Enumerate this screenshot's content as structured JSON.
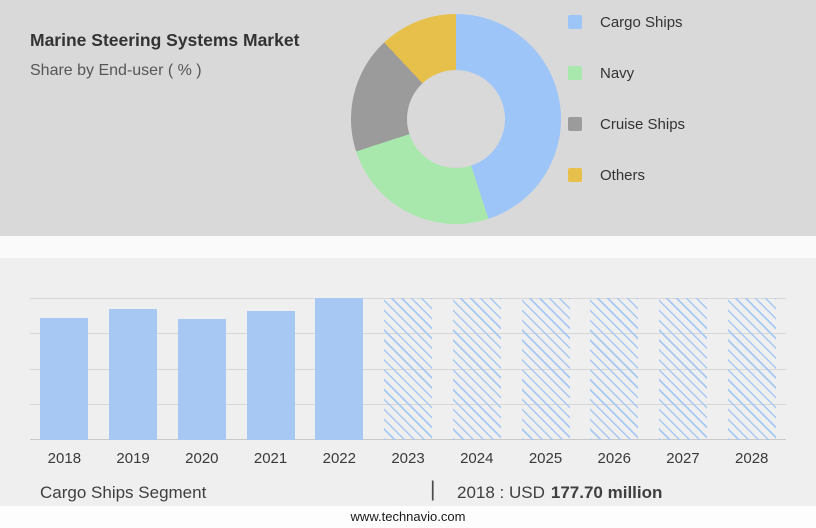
{
  "header": {
    "title": "Marine Steering Systems Market",
    "subtitle": "Share by End-user ( % )"
  },
  "legend": [
    {
      "label": "Cargo Ships",
      "color": "#9ec5f8"
    },
    {
      "label": "Navy",
      "color": "#a9e8ad"
    },
    {
      "label": "Cruise Ships",
      "color": "#9b9b9b"
    },
    {
      "label": "Others",
      "color": "#e7c04c"
    }
  ],
  "chart_data": [
    {
      "type": "pie",
      "title": "Share by End-user ( % )",
      "labels": [
        "Cargo Ships",
        "Navy",
        "Cruise Ships",
        "Others"
      ],
      "values": [
        45,
        25,
        18,
        12
      ],
      "colors": [
        "#9ec5f8",
        "#a9e8ad",
        "#9b9b9b",
        "#e7c04c"
      ],
      "donut": true,
      "legend_position": "right"
    },
    {
      "type": "bar",
      "categories": [
        "2018",
        "2019",
        "2020",
        "2021",
        "2022",
        "2023",
        "2024",
        "2025",
        "2026",
        "2027",
        "2028"
      ],
      "values": [
        86,
        92,
        85,
        91,
        100,
        100,
        100,
        100,
        100,
        100,
        100
      ],
      "forecast_categories": [
        "2023",
        "2024",
        "2025",
        "2026",
        "2027",
        "2028"
      ],
      "bar_color": "#a6c8f3",
      "annotation": "2018 : USD 177.70 million",
      "grid": true,
      "ylim": [
        0,
        100
      ]
    }
  ],
  "footer": {
    "segment_label": "Cargo Ships Segment",
    "separator": "|",
    "value_prefix": "2018 : USD",
    "value_bold": "177.70 million",
    "website": "www.technavio.com"
  }
}
